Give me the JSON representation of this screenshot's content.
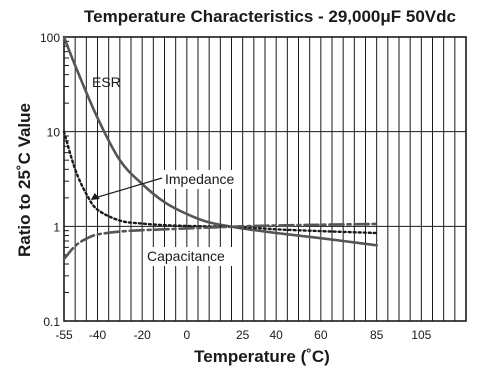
{
  "chart_data": {
    "type": "line",
    "title": "Temperature Characteristics - 29,000μF 50Vdc",
    "xlabel": "Temperature (˚C)",
    "ylabel": "Ratio to 25˚C Value",
    "x_scale": "linear",
    "y_scale": "log",
    "xlim": [
      -55,
      125
    ],
    "ylim": [
      0.1,
      100
    ],
    "x_ticks": [
      -55,
      -40,
      -20,
      0,
      25,
      40,
      60,
      85,
      105
    ],
    "x_tick_labels": [
      "-55",
      "-40",
      "-20",
      "0",
      "25",
      "40",
      "60",
      "85",
      "105"
    ],
    "x_gridlines": [
      -55,
      -50,
      -45,
      -40,
      -35,
      -30,
      -25,
      -20,
      -15,
      -10,
      -5,
      0,
      5,
      10,
      15,
      20,
      25,
      30,
      35,
      40,
      45,
      50,
      55,
      60,
      65,
      70,
      75,
      80,
      85,
      90,
      95,
      100,
      105,
      110,
      115,
      120,
      125
    ],
    "y_ticks": [
      0.1,
      1,
      10,
      100
    ],
    "y_tick_labels": [
      "0.1",
      "1",
      "10",
      "100"
    ],
    "grid": true,
    "series": [
      {
        "name": "ESR",
        "style": "solid",
        "color": "#555555",
        "x": [
          -55,
          -50,
          -40,
          -30,
          -20,
          -10,
          0,
          10,
          25,
          40,
          60,
          85
        ],
        "y": [
          100,
          50,
          14,
          5,
          2.8,
          1.8,
          1.35,
          1.1,
          0.95,
          0.85,
          0.75,
          0.63
        ]
      },
      {
        "name": "Impedance",
        "style": "dotted",
        "color": "#1a1a1a",
        "x": [
          -55,
          -50,
          -45,
          -40,
          -30,
          -20,
          -10,
          0,
          25,
          40,
          60,
          85
        ],
        "y": [
          10,
          4,
          2.2,
          1.5,
          1.15,
          1.07,
          1.03,
          1.01,
          0.98,
          0.93,
          0.89,
          0.85
        ]
      },
      {
        "name": "Capacitance",
        "style": "dashdot",
        "color": "#555555",
        "x": [
          -55,
          -50,
          -45,
          -40,
          -30,
          -20,
          -10,
          0,
          25,
          40,
          60,
          85
        ],
        "y": [
          0.45,
          0.62,
          0.74,
          0.82,
          0.88,
          0.91,
          0.93,
          0.95,
          1.0,
          1.02,
          1.04,
          1.06
        ]
      }
    ],
    "annotations": [
      {
        "text": "ESR"
      },
      {
        "text": "Impedance"
      },
      {
        "text": "Capacitance"
      }
    ]
  }
}
